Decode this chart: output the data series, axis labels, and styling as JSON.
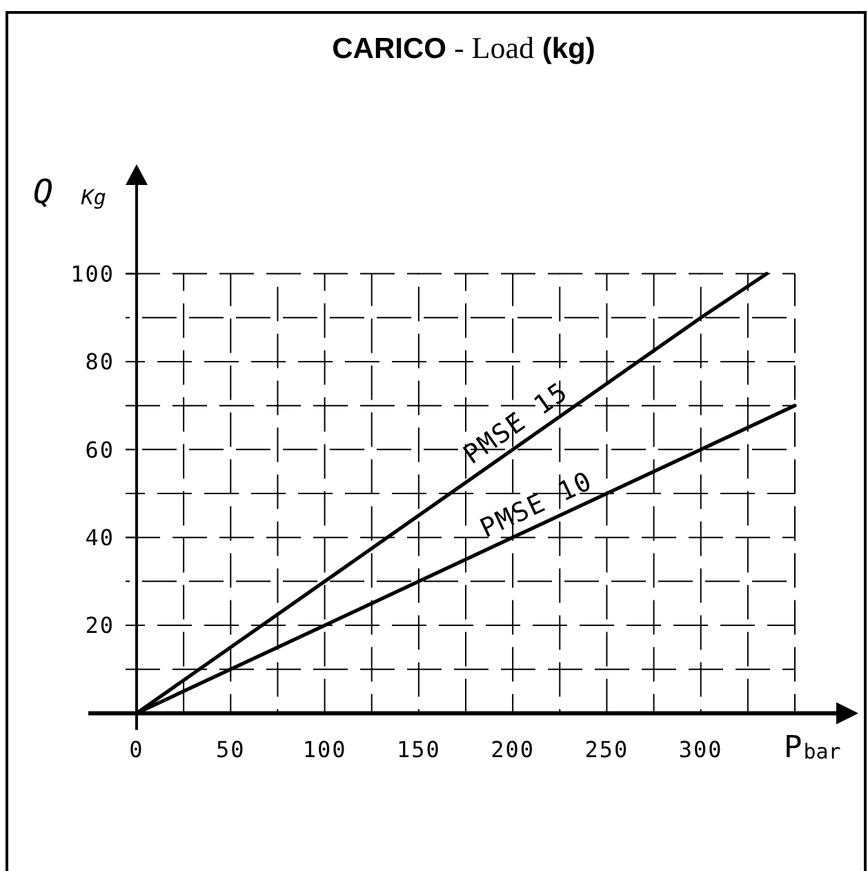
{
  "chart_data": {
    "type": "line",
    "title": "CARICO - Load (kg)",
    "xlabel": "P$_{bar}$",
    "ylabel": "Q $_{Kg}$",
    "xlim": [
      0,
      350
    ],
    "ylim": [
      0,
      100
    ],
    "xticks": [
      0,
      {
        "value": 25,
        "label": null
      },
      50,
      {
        "value": 75,
        "label": null
      },
      100,
      {
        "value": 125,
        "label": null
      },
      150,
      {
        "value": 175,
        "label": null
      },
      200,
      {
        "value": 225,
        "label": null
      },
      250,
      {
        "value": 275,
        "label": null
      },
      300,
      {
        "value": 325,
        "label": null
      },
      {
        "value": 350,
        "label": null
      }
    ],
    "yticks": [
      {
        "value": 10,
        "label": null
      },
      20,
      {
        "value": 30,
        "label": null
      },
      40,
      {
        "value": 50,
        "label": null
      },
      60,
      {
        "value": 70,
        "label": null
      },
      80,
      {
        "value": 90,
        "label": null
      },
      100
    ],
    "grid": true,
    "series": [
      {
        "name": "PMSE 15",
        "color": "#000000",
        "x": [
          0,
          100,
          200,
          300,
          335
        ],
        "values": [
          0,
          30,
          60,
          90,
          100
        ]
      },
      {
        "name": "PMSE 10",
        "color": "#000000",
        "x": [
          0,
          100,
          200,
          300,
          350
        ],
        "values": [
          0,
          20,
          40,
          60,
          70
        ]
      }
    ]
  }
}
